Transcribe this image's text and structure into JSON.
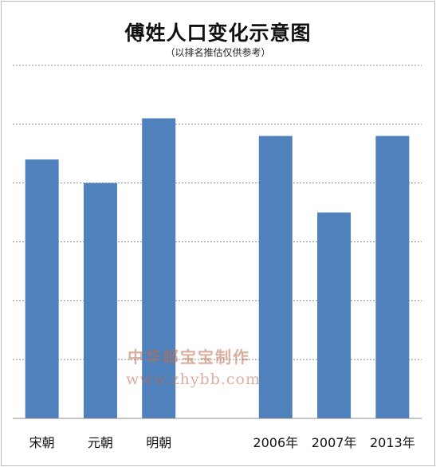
{
  "chart_data": {
    "type": "bar",
    "title": "傅姓人口变化示意图",
    "subtitle": "（以排名推估仅供参考）",
    "categories": [
      "宋朝",
      "元朝",
      "明朝",
      "",
      "2006年",
      "2007年",
      "2013年"
    ],
    "values": [
      4.4,
      4.0,
      5.1,
      null,
      4.8,
      3.5,
      4.8
    ],
    "ylim": [
      0,
      6
    ],
    "grid": true,
    "bar_color": "#4f81bd",
    "grid_color": "#8c8c8c"
  },
  "watermark": {
    "line1": "中华邮宝宝制作",
    "line2": "www.zhybb.com"
  }
}
